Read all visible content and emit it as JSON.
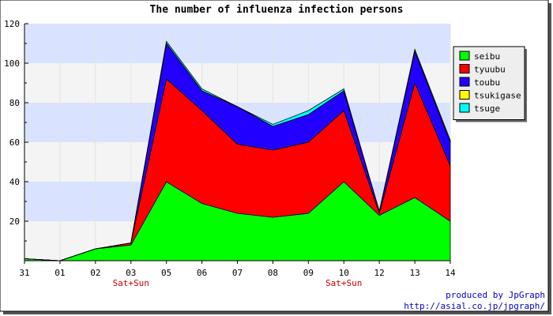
{
  "chart_data": {
    "type": "area",
    "stacked": true,
    "title": "The number of influenza infection persons",
    "categories": [
      "31",
      "01",
      "02",
      "03",
      "05",
      "06",
      "07",
      "08",
      "09",
      "10",
      "12",
      "13",
      "14"
    ],
    "category_notes": [
      {
        "category": "03",
        "text": "Sat+Sun"
      },
      {
        "category": "10",
        "text": "Sat+Sun"
      }
    ],
    "ylim": [
      0,
      120
    ],
    "yticks": [
      20,
      40,
      60,
      80,
      100,
      120
    ],
    "grid": true,
    "legend_position": "right",
    "series": [
      {
        "name": "seibu",
        "color": "#00ff00",
        "values": [
          1,
          0,
          6,
          8,
          40,
          29,
          24,
          22,
          24,
          40,
          23,
          32,
          20
        ]
      },
      {
        "name": "tyuubu",
        "color": "#ff0000",
        "values": [
          0,
          0,
          0,
          1,
          52,
          47,
          35,
          34,
          36,
          36,
          1,
          58,
          28
        ]
      },
      {
        "name": "toubu",
        "color": "#2200ff",
        "values": [
          0,
          0,
          0,
          0,
          18,
          10,
          19,
          12,
          14,
          10,
          1,
          16,
          12
        ]
      },
      {
        "name": "tsukigase",
        "color": "#ffff00",
        "values": [
          0,
          0,
          0,
          0,
          0,
          0,
          0,
          0,
          0,
          0,
          0,
          0,
          0
        ]
      },
      {
        "name": "tsuge",
        "color": "#00ffff",
        "values": [
          0,
          0,
          0,
          0,
          1,
          1,
          0,
          1,
          2,
          1,
          0,
          1,
          1
        ]
      }
    ]
  },
  "credits": {
    "line1": "produced by JpGraph",
    "line2": "http://asial.co.jp/jpgraph/"
  }
}
